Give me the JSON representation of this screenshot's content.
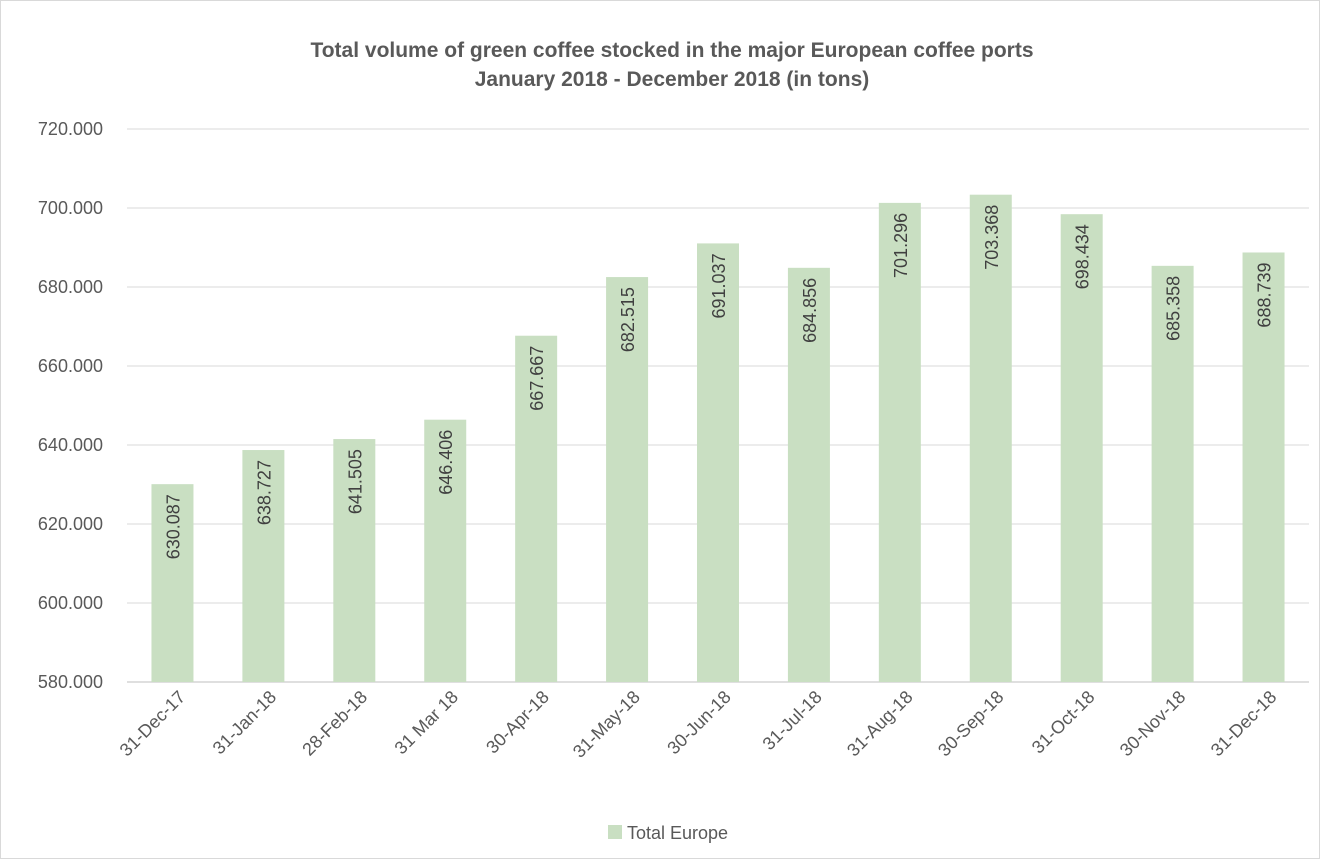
{
  "chart_data": {
    "type": "bar",
    "title": [
      "Total volume of green coffee stocked in the major European coffee ports",
      "January 2018 - December 2018 (in tons)"
    ],
    "categories": [
      "31-Dec-17",
      "31-Jan-18",
      "28-Feb-18",
      "31 Mar 18",
      "30-Apr-18",
      "31-May-18",
      "30-Jun-18",
      "31-Jul-18",
      "31-Aug-18",
      "30-Sep-18",
      "31-Oct-18",
      "30-Nov-18",
      "31-Dec-18"
    ],
    "series": [
      {
        "name": "Total Europe",
        "values": [
          630087,
          638727,
          641505,
          646406,
          667667,
          682515,
          691037,
          684856,
          701296,
          703368,
          698434,
          685358,
          688739
        ],
        "labels": [
          "630.087",
          "638.727",
          "641.505",
          "646.406",
          "667.667",
          "682.515",
          "691.037",
          "684.856",
          "701.296",
          "703.368",
          "698.434",
          "685.358",
          "688.739"
        ],
        "color": "#c9dfc2"
      }
    ],
    "ylim": [
      580000,
      720000
    ],
    "yticks": [
      580000,
      600000,
      620000,
      640000,
      660000,
      680000,
      700000,
      720000
    ],
    "ytick_labels": [
      "580.000",
      "600.000",
      "620.000",
      "640.000",
      "660.000",
      "680.000",
      "700.000",
      "720.000"
    ],
    "grid": true,
    "legend_position": "bottom",
    "colors": {
      "gridline": "#d9d9d9",
      "axis": "#bfbfbf",
      "text": "#595959"
    }
  }
}
